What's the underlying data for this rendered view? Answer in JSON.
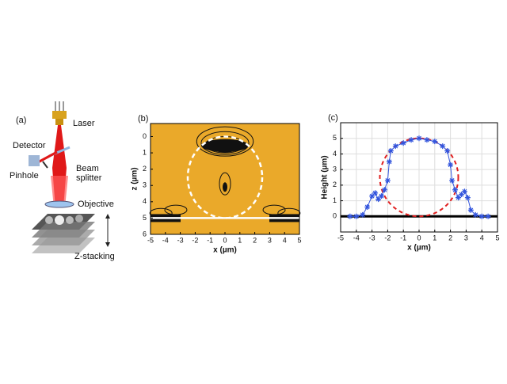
{
  "diagram": {
    "panel_label": "(a)",
    "laser": "Laser",
    "detector": "Detector",
    "pinhole": "Pinhole",
    "beam_splitter": [
      "Beam",
      "splitter"
    ],
    "objective": "Objective",
    "z_stacking": "Z-stacking"
  },
  "chart_data": [
    {
      "type": "contour",
      "panel_label": "(b)",
      "x_label": "x (µm)",
      "y_label": "z (µm)",
      "background": "#eaa92a",
      "xlim": [
        -5,
        5
      ],
      "xticks": [
        -5,
        -4,
        -3,
        -2,
        -1,
        0,
        1,
        2,
        3,
        4,
        5
      ],
      "ylim": [
        6,
        -0.8
      ],
      "yticks": [
        0,
        1,
        2,
        3,
        4,
        5,
        6
      ],
      "reference_circle": {
        "center": [
          0,
          2.5
        ],
        "radius": 2.5,
        "color": "#ffffff"
      },
      "surface": 5
    },
    {
      "type": "scatter",
      "panel_label": "(c)",
      "x_label": "x (µm)",
      "y_label": "Height (µm)",
      "grid": true,
      "xlim": [
        -5,
        5
      ],
      "xticks": [
        -5,
        -4,
        -3,
        -2,
        -1,
        0,
        1,
        2,
        3,
        4,
        5
      ],
      "ylim": [
        -1,
        6
      ],
      "yticks": [
        0,
        1,
        2,
        3,
        4,
        5
      ],
      "series": [
        {
          "color": "#3355dd",
          "x": [
            -4.4,
            -4,
            -3.6,
            -3.3,
            -3,
            -2.8,
            -2.6,
            -2.4,
            -2.2,
            -2,
            -1.9,
            -1.8,
            -1.5,
            -1,
            -0.5,
            0,
            0.5,
            1,
            1.5,
            1.8,
            2,
            2.1,
            2.3,
            2.5,
            2.7,
            2.9,
            3.1,
            3.3,
            3.6,
            4,
            4.4
          ],
          "values": [
            0,
            0,
            0.1,
            0.6,
            1.3,
            1.5,
            1.1,
            1.3,
            1.7,
            2.3,
            3.5,
            4.2,
            4.5,
            4.7,
            4.9,
            5,
            4.9,
            4.8,
            4.5,
            4.2,
            3.3,
            2.3,
            1.7,
            1.2,
            1.4,
            1.6,
            1.2,
            0.4,
            0.1,
            0,
            0
          ]
        }
      ],
      "reference_circle": {
        "center": [
          0,
          2.5
        ],
        "radius": 2.5,
        "color": "#e02020"
      },
      "baseline": 0
    }
  ]
}
